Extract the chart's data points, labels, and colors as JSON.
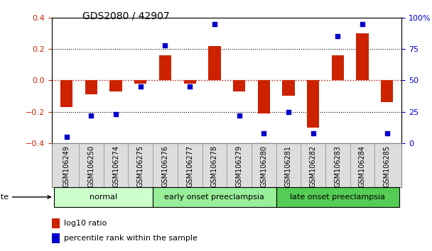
{
  "title": "GDS2080 / 42907",
  "samples": [
    "GSM106249",
    "GSM106250",
    "GSM106274",
    "GSM106275",
    "GSM106276",
    "GSM106277",
    "GSM106278",
    "GSM106279",
    "GSM106280",
    "GSM106281",
    "GSM106282",
    "GSM106283",
    "GSM106284",
    "GSM106285"
  ],
  "log10_ratio": [
    -0.17,
    -0.09,
    -0.07,
    -0.02,
    0.16,
    -0.02,
    0.22,
    -0.07,
    -0.21,
    -0.1,
    -0.3,
    0.16,
    0.3,
    -0.14
  ],
  "percentile_rank": [
    5,
    22,
    23,
    45,
    78,
    45,
    95,
    22,
    8,
    25,
    8,
    85,
    95,
    8
  ],
  "groups": [
    {
      "label": "normal",
      "start": 0,
      "end": 4,
      "color": "#ccffcc"
    },
    {
      "label": "early onset preeclampsia",
      "start": 4,
      "end": 9,
      "color": "#99ee99"
    },
    {
      "label": "late onset preeclampsia",
      "start": 9,
      "end": 14,
      "color": "#55cc55"
    }
  ],
  "ylim_left": [
    -0.4,
    0.4
  ],
  "ylim_right": [
    0,
    100
  ],
  "bar_color_red": "#cc2200",
  "bar_color_blue": "#0000cc",
  "zero_line_color": "#cc0000",
  "dotted_line_color": "#000000",
  "background_color": "#ffffff",
  "title_fontsize": 10,
  "tick_label_fontsize": 7,
  "legend_fontsize": 8,
  "group_label_fontsize": 8,
  "disease_state_fontsize": 8,
  "ytick_fontsize": 8
}
